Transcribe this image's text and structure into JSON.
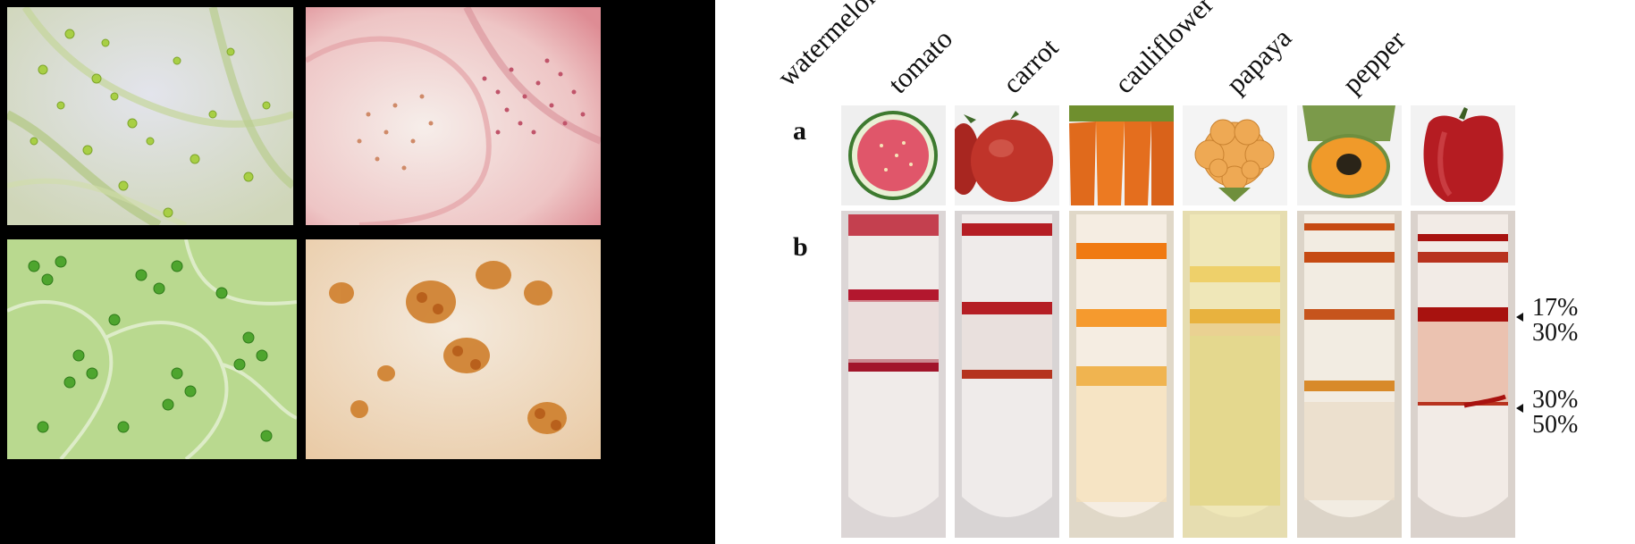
{
  "micrographs": [
    {
      "id": "green-plastids-sparse",
      "palette": "green"
    },
    {
      "id": "red-plastids",
      "palette": "pink-red"
    },
    {
      "id": "green-plastids-dense",
      "palette": "green"
    },
    {
      "id": "orange-plastids",
      "palette": "orange"
    }
  ],
  "figure": {
    "columns": [
      {
        "label": "watermelon",
        "band_color": "#b3172e"
      },
      {
        "label": "tomato",
        "band_color": "#b51e24"
      },
      {
        "label": "carrot",
        "band_color": "#f07a12"
      },
      {
        "label": "cauliflower",
        "band_color": "#e8b23e"
      },
      {
        "label": "papaya",
        "band_color": "#c64a12"
      },
      {
        "label": "pepper",
        "band_color": "#a8120f"
      }
    ],
    "panel_a_letter": "a",
    "panel_b_letter": "b",
    "gradient_labels": {
      "upper_top": "17%",
      "upper_bottom": "30%",
      "lower_top": "30%",
      "lower_bottom": "50%"
    }
  }
}
